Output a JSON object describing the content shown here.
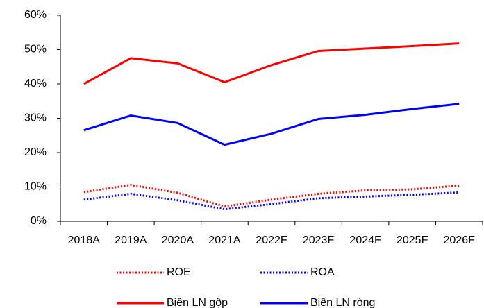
{
  "chart_data": {
    "type": "line",
    "categories": [
      "2018A",
      "2019A",
      "2020A",
      "2021A",
      "2022F",
      "2023F",
      "2024F",
      "2025F",
      "2026F"
    ],
    "series": [
      {
        "name": "ROE",
        "color": "#ff0000",
        "style": "dotted",
        "values": [
          8.5,
          10.6,
          8.3,
          4.3,
          6.3,
          8.0,
          9.0,
          9.3,
          10.4
        ]
      },
      {
        "name": "ROA",
        "color": "#0000ff",
        "style": "dotted",
        "values": [
          6.3,
          8.0,
          6.1,
          3.5,
          5.0,
          6.7,
          7.2,
          7.7,
          8.4
        ]
      },
      {
        "name": "Biên LN gộp",
        "color": "#ff0000",
        "style": "solid",
        "values": [
          40.0,
          47.5,
          46.0,
          40.5,
          45.5,
          49.6,
          50.3,
          51.0,
          51.8
        ]
      },
      {
        "name": "Biên LN ròng",
        "color": "#0000ff",
        "style": "solid",
        "values": [
          26.5,
          30.8,
          28.6,
          22.3,
          25.5,
          29.8,
          31.0,
          32.7,
          34.2
        ]
      }
    ],
    "ylim": [
      0,
      60
    ],
    "yticks": [
      {
        "value": 0,
        "label": "0%"
      },
      {
        "value": 10,
        "label": "10%"
      },
      {
        "value": 20,
        "label": "20%"
      },
      {
        "value": 30,
        "label": "30%"
      },
      {
        "value": 40,
        "label": "40%"
      },
      {
        "value": 50,
        "label": "50%"
      },
      {
        "value": 60,
        "label": "60%"
      }
    ],
    "grid": false,
    "legend": "bottom"
  }
}
